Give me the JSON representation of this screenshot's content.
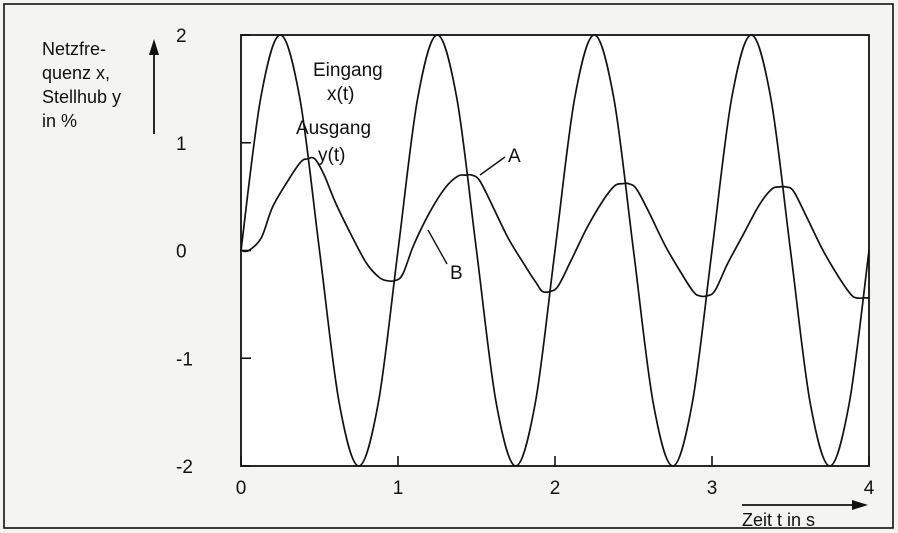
{
  "chart_data": {
    "type": "line",
    "title": "",
    "ylabel_lines": [
      "Netzfre-",
      "quenz x,",
      "Stellhub y",
      "in %"
    ],
    "xlabel": "Zeit t in s",
    "xlim": [
      0,
      4
    ],
    "ylim": [
      -2,
      2
    ],
    "x_ticks": [
      0,
      1,
      2,
      3,
      4
    ],
    "y_ticks": [
      2,
      1,
      0,
      -1,
      -2
    ],
    "x_tick_labels": [
      "0",
      "1",
      "2",
      "3",
      "4"
    ],
    "y_tick_labels": [
      "2",
      "1",
      "0",
      "-1",
      "-2"
    ],
    "grid": false,
    "series": [
      {
        "name": "Eingang x(t)",
        "label_lines": [
          "Eingang",
          "x(t)"
        ],
        "x": [
          0,
          0.125,
          0.25,
          0.375,
          0.5,
          0.625,
          0.75,
          0.875,
          1,
          1.125,
          1.25,
          1.375,
          1.5,
          1.625,
          1.75,
          1.875,
          2,
          2.125,
          2.25,
          2.375,
          2.5,
          2.625,
          2.75,
          2.875,
          3,
          3.125,
          3.25,
          3.375,
          3.5,
          3.625,
          3.75,
          3.875,
          4
        ],
        "values": [
          0,
          1.41,
          2,
          1.41,
          0,
          -1.41,
          -2,
          -1.41,
          0,
          1.41,
          2,
          1.41,
          0,
          -1.41,
          -2,
          -1.41,
          0,
          1.41,
          2,
          1.41,
          0,
          -1.41,
          -2,
          -1.41,
          0,
          1.41,
          2,
          1.41,
          0,
          -1.41,
          -2,
          -1.41,
          0
        ]
      },
      {
        "name": "Ausgang y(t)",
        "label_lines": [
          "Ausgang",
          "y(t)"
        ],
        "x": [
          0,
          0.05,
          0.13,
          0.2,
          0.3,
          0.38,
          0.42,
          0.47,
          0.53,
          0.6,
          0.7,
          0.8,
          0.88,
          0.93,
          0.98,
          1.03,
          1.1,
          1.2,
          1.3,
          1.38,
          1.43,
          1.47,
          1.52,
          1.6,
          1.7,
          1.8,
          1.88,
          1.92,
          1.97,
          2.02,
          2.1,
          2.2,
          2.3,
          2.38,
          2.43,
          2.47,
          2.52,
          2.6,
          2.7,
          2.8,
          2.88,
          2.92,
          2.97,
          3.02,
          3.1,
          3.2,
          3.3,
          3.38,
          3.43,
          3.47,
          3.52,
          3.6,
          3.7,
          3.8,
          3.88,
          3.92,
          3.97,
          4
        ],
        "values": [
          0,
          0,
          0.12,
          0.4,
          0.65,
          0.82,
          0.85,
          0.85,
          0.7,
          0.45,
          0.15,
          -0.12,
          -0.25,
          -0.28,
          -0.28,
          -0.22,
          0.05,
          0.35,
          0.58,
          0.69,
          0.7,
          0.7,
          0.65,
          0.42,
          0.12,
          -0.12,
          -0.3,
          -0.38,
          -0.38,
          -0.33,
          -0.1,
          0.2,
          0.45,
          0.6,
          0.62,
          0.62,
          0.57,
          0.35,
          0.05,
          -0.2,
          -0.38,
          -0.42,
          -0.42,
          -0.37,
          -0.12,
          0.15,
          0.42,
          0.57,
          0.59,
          0.59,
          0.55,
          0.32,
          0.02,
          -0.23,
          -0.4,
          -0.44,
          -0.44,
          -0.44
        ]
      }
    ],
    "annotations": [
      "A",
      "B"
    ]
  }
}
